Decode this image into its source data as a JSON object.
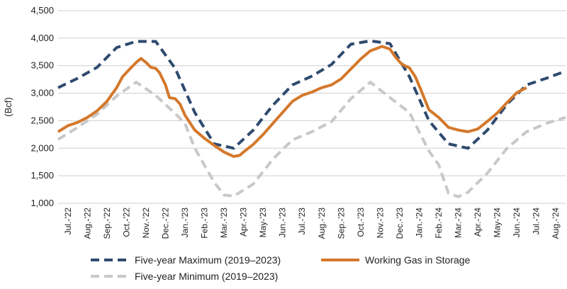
{
  "chart_data": {
    "type": "line",
    "title": "",
    "xlabel": "",
    "ylabel": "(Bcf)",
    "ylim": [
      1000,
      4500
    ],
    "yticks": [
      1000,
      1500,
      2000,
      2500,
      3000,
      3500,
      4000,
      4500
    ],
    "ytick_labels": [
      "1,000",
      "1,500",
      "2,000",
      "2,500",
      "3,000",
      "3,500",
      "4,000",
      "4,500"
    ],
    "grid": "horizontal",
    "legend_position": "bottom",
    "categories": [
      "Jul.-'22",
      "Aug.-'22",
      "Sep.-'22",
      "Oct.-'22",
      "Nov.-'22",
      "Dec.-'22",
      "Jan.-'23",
      "Feb.-'23",
      "Mar.-'23",
      "Apr.-'23",
      "May-'23",
      "Jun.-'23",
      "Jul.-'23",
      "Aug.-'23",
      "Sep.-'23",
      "Oct.-'23",
      "Nov.-'23",
      "Dec.-'23",
      "Jan.-'24",
      "Feb.-'24",
      "Mar.-'24",
      "Apr.-'24",
      "May-'24",
      "Jun.-'24",
      "Jul.-'24",
      "Aug.-'24"
    ],
    "x_start": 0,
    "x_end": 26,
    "series": [
      {
        "name": "Five-year Maximum (2019–2023)",
        "color": "#2e4a6e",
        "style": "dashed",
        "points": [
          [
            0,
            3100
          ],
          [
            1,
            3270
          ],
          [
            2,
            3470
          ],
          [
            3,
            3830
          ],
          [
            4,
            3940
          ],
          [
            5,
            3940
          ],
          [
            6,
            3450
          ],
          [
            7,
            2650
          ],
          [
            8,
            2080
          ],
          [
            9,
            2000
          ],
          [
            10,
            2330
          ],
          [
            11,
            2780
          ],
          [
            12,
            3150
          ],
          [
            13,
            3310
          ],
          [
            14,
            3520
          ],
          [
            15,
            3890
          ],
          [
            16,
            3950
          ],
          [
            17,
            3900
          ],
          [
            18,
            3300
          ],
          [
            19,
            2500
          ],
          [
            20,
            2080
          ],
          [
            21,
            2000
          ],
          [
            22,
            2330
          ],
          [
            23,
            2800
          ],
          [
            24,
            3150
          ],
          [
            25,
            3270
          ],
          [
            26,
            3400
          ]
        ]
      },
      {
        "name": "Working Gas in Storage",
        "color": "#d4782b",
        "style": "solid",
        "points": [
          [
            0,
            2300
          ],
          [
            0.5,
            2410
          ],
          [
            1,
            2470
          ],
          [
            1.5,
            2560
          ],
          [
            2,
            2680
          ],
          [
            2.5,
            2850
          ],
          [
            3,
            3100
          ],
          [
            3.3,
            3300
          ],
          [
            3.7,
            3450
          ],
          [
            4,
            3560
          ],
          [
            4.25,
            3630
          ],
          [
            4.5,
            3560
          ],
          [
            4.75,
            3470
          ],
          [
            5,
            3450
          ],
          [
            5.2,
            3370
          ],
          [
            5.5,
            3150
          ],
          [
            5.7,
            2920
          ],
          [
            6,
            2900
          ],
          [
            6.25,
            2800
          ],
          [
            6.5,
            2600
          ],
          [
            7,
            2330
          ],
          [
            7.5,
            2180
          ],
          [
            8,
            2050
          ],
          [
            8.5,
            1930
          ],
          [
            9,
            1850
          ],
          [
            9.3,
            1870
          ],
          [
            9.6,
            1960
          ],
          [
            10,
            2070
          ],
          [
            10.5,
            2250
          ],
          [
            11,
            2450
          ],
          [
            11.5,
            2650
          ],
          [
            12,
            2850
          ],
          [
            12.5,
            2960
          ],
          [
            13,
            3020
          ],
          [
            13.5,
            3100
          ],
          [
            14,
            3150
          ],
          [
            14.5,
            3260
          ],
          [
            15,
            3440
          ],
          [
            15.5,
            3620
          ],
          [
            16,
            3770
          ],
          [
            16.3,
            3810
          ],
          [
            16.6,
            3850
          ],
          [
            17,
            3800
          ],
          [
            17.3,
            3650
          ],
          [
            17.6,
            3530
          ],
          [
            18,
            3460
          ],
          [
            18.3,
            3300
          ],
          [
            18.6,
            3050
          ],
          [
            19,
            2700
          ],
          [
            19.5,
            2560
          ],
          [
            20,
            2380
          ],
          [
            20.5,
            2330
          ],
          [
            21,
            2300
          ],
          [
            21.5,
            2350
          ],
          [
            22,
            2490
          ],
          [
            22.5,
            2640
          ],
          [
            23,
            2830
          ],
          [
            23.5,
            3010
          ],
          [
            24,
            3100
          ]
        ]
      },
      {
        "name": "Five-year Minimum (2019–2023)",
        "color": "#c8c8c8",
        "style": "dashed",
        "points": [
          [
            0,
            2160
          ],
          [
            1,
            2380
          ],
          [
            2,
            2620
          ],
          [
            3,
            2950
          ],
          [
            4,
            3200
          ],
          [
            5,
            2960
          ],
          [
            6,
            2630
          ],
          [
            6.5,
            2450
          ],
          [
            7,
            2000
          ],
          [
            8,
            1380
          ],
          [
            8.5,
            1150
          ],
          [
            9,
            1130
          ],
          [
            10,
            1350
          ],
          [
            11,
            1800
          ],
          [
            12,
            2150
          ],
          [
            13,
            2300
          ],
          [
            14,
            2480
          ],
          [
            15,
            2900
          ],
          [
            16,
            3200
          ],
          [
            17,
            2920
          ],
          [
            18,
            2650
          ],
          [
            19,
            1950
          ],
          [
            19.5,
            1700
          ],
          [
            20,
            1180
          ],
          [
            20.5,
            1120
          ],
          [
            21,
            1200
          ],
          [
            22,
            1550
          ],
          [
            23,
            2000
          ],
          [
            24,
            2300
          ],
          [
            25,
            2450
          ],
          [
            26,
            2560
          ]
        ]
      }
    ]
  }
}
